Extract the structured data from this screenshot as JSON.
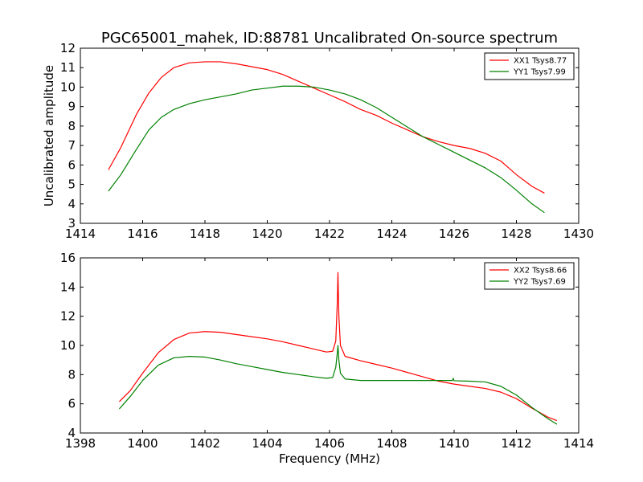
{
  "chart_data": [
    {
      "type": "line",
      "title": "PGC65001_mahek, ID:88781 Uncalibrated On-source spectrum",
      "xlabel": "",
      "ylabel": "Uncalibrated amplitude",
      "xlim": [
        1414,
        1430
      ],
      "ylim": [
        3,
        12
      ],
      "xticks": [
        1414,
        1416,
        1418,
        1420,
        1422,
        1424,
        1426,
        1428,
        1430
      ],
      "yticks": [
        3,
        4,
        5,
        6,
        7,
        8,
        9,
        10,
        11,
        12
      ],
      "grid": false,
      "legend": "top-right",
      "series": [
        {
          "name": "XX1 Tsys8.77",
          "color": "#ff0000",
          "points": [
            [
              1414.9,
              5.75
            ],
            [
              1415.3,
              6.9
            ],
            [
              1415.8,
              8.6
            ],
            [
              1416.2,
              9.7
            ],
            [
              1416.6,
              10.5
            ],
            [
              1417.0,
              11.0
            ],
            [
              1417.5,
              11.25
            ],
            [
              1418.0,
              11.3
            ],
            [
              1418.5,
              11.3
            ],
            [
              1419.0,
              11.2
            ],
            [
              1419.5,
              11.05
            ],
            [
              1420.0,
              10.9
            ],
            [
              1420.5,
              10.65
            ],
            [
              1421.0,
              10.3
            ],
            [
              1421.5,
              9.95
            ],
            [
              1422.0,
              9.6
            ],
            [
              1422.5,
              9.25
            ],
            [
              1423.0,
              8.85
            ],
            [
              1423.5,
              8.55
            ],
            [
              1424.0,
              8.15
            ],
            [
              1424.5,
              7.8
            ],
            [
              1425.0,
              7.45
            ],
            [
              1425.5,
              7.2
            ],
            [
              1426.0,
              7.0
            ],
            [
              1426.5,
              6.85
            ],
            [
              1427.0,
              6.6
            ],
            [
              1427.5,
              6.2
            ],
            [
              1428.0,
              5.5
            ],
            [
              1428.5,
              4.9
            ],
            [
              1428.9,
              4.55
            ]
          ]
        },
        {
          "name": "YY1 Tsys7.99",
          "color": "#008000",
          "points": [
            [
              1414.9,
              4.65
            ],
            [
              1415.3,
              5.5
            ],
            [
              1415.8,
              6.8
            ],
            [
              1416.2,
              7.8
            ],
            [
              1416.6,
              8.45
            ],
            [
              1417.0,
              8.85
            ],
            [
              1417.5,
              9.15
            ],
            [
              1418.0,
              9.35
            ],
            [
              1418.5,
              9.5
            ],
            [
              1419.0,
              9.65
            ],
            [
              1419.5,
              9.85
            ],
            [
              1420.0,
              9.95
            ],
            [
              1420.5,
              10.05
            ],
            [
              1421.0,
              10.05
            ],
            [
              1421.5,
              10.0
            ],
            [
              1422.0,
              9.85
            ],
            [
              1422.5,
              9.65
            ],
            [
              1423.0,
              9.35
            ],
            [
              1423.5,
              8.95
            ],
            [
              1424.0,
              8.45
            ],
            [
              1424.5,
              7.95
            ],
            [
              1425.0,
              7.45
            ],
            [
              1425.5,
              7.05
            ],
            [
              1426.0,
              6.65
            ],
            [
              1426.5,
              6.25
            ],
            [
              1427.0,
              5.85
            ],
            [
              1427.5,
              5.35
            ],
            [
              1428.0,
              4.7
            ],
            [
              1428.5,
              4.0
            ],
            [
              1428.9,
              3.55
            ]
          ]
        }
      ]
    },
    {
      "type": "line",
      "title": "",
      "xlabel": "Frequency (MHz)",
      "ylabel": "",
      "xlim": [
        1398,
        1414
      ],
      "ylim": [
        4,
        16
      ],
      "xticks": [
        1398,
        1400,
        1402,
        1404,
        1406,
        1408,
        1410,
        1412,
        1414
      ],
      "yticks": [
        4,
        6,
        8,
        10,
        12,
        14,
        16
      ],
      "grid": false,
      "legend": "top-right",
      "series": [
        {
          "name": "XX2 Tsys8.66",
          "color": "#ff0000",
          "points": [
            [
              1399.25,
              6.15
            ],
            [
              1399.6,
              6.9
            ],
            [
              1400.0,
              8.1
            ],
            [
              1400.5,
              9.5
            ],
            [
              1401.0,
              10.4
            ],
            [
              1401.5,
              10.85
            ],
            [
              1402.0,
              10.95
            ],
            [
              1402.5,
              10.9
            ],
            [
              1403.0,
              10.75
            ],
            [
              1403.5,
              10.6
            ],
            [
              1404.0,
              10.45
            ],
            [
              1404.5,
              10.25
            ],
            [
              1405.0,
              10.0
            ],
            [
              1405.5,
              9.75
            ],
            [
              1405.9,
              9.55
            ],
            [
              1406.1,
              9.6
            ],
            [
              1406.2,
              10.3
            ],
            [
              1406.25,
              13.0
            ],
            [
              1406.27,
              15.0
            ],
            [
              1406.3,
              12.0
            ],
            [
              1406.35,
              10.0
            ],
            [
              1406.5,
              9.25
            ],
            [
              1407.0,
              8.95
            ],
            [
              1407.5,
              8.7
            ],
            [
              1408.0,
              8.45
            ],
            [
              1408.5,
              8.15
            ],
            [
              1409.0,
              7.85
            ],
            [
              1409.5,
              7.55
            ],
            [
              1410.0,
              7.35
            ],
            [
              1410.5,
              7.2
            ],
            [
              1411.0,
              7.05
            ],
            [
              1411.5,
              6.8
            ],
            [
              1412.0,
              6.35
            ],
            [
              1412.5,
              5.7
            ],
            [
              1413.0,
              5.1
            ],
            [
              1413.3,
              4.85
            ]
          ]
        },
        {
          "name": "YY2 Tsys7.69",
          "color": "#008000",
          "points": [
            [
              1399.25,
              5.65
            ],
            [
              1399.6,
              6.5
            ],
            [
              1400.0,
              7.6
            ],
            [
              1400.5,
              8.65
            ],
            [
              1401.0,
              9.15
            ],
            [
              1401.5,
              9.25
            ],
            [
              1402.0,
              9.2
            ],
            [
              1402.5,
              9.0
            ],
            [
              1403.0,
              8.75
            ],
            [
              1403.5,
              8.55
            ],
            [
              1404.0,
              8.35
            ],
            [
              1404.5,
              8.15
            ],
            [
              1405.0,
              8.0
            ],
            [
              1405.5,
              7.85
            ],
            [
              1405.9,
              7.75
            ],
            [
              1406.1,
              7.8
            ],
            [
              1406.2,
              8.5
            ],
            [
              1406.25,
              9.5
            ],
            [
              1406.27,
              10.0
            ],
            [
              1406.3,
              9.0
            ],
            [
              1406.35,
              8.1
            ],
            [
              1406.5,
              7.7
            ],
            [
              1407.0,
              7.6
            ],
            [
              1407.5,
              7.6
            ],
            [
              1408.0,
              7.6
            ],
            [
              1408.5,
              7.6
            ],
            [
              1409.0,
              7.6
            ],
            [
              1409.5,
              7.6
            ],
            [
              1409.95,
              7.6
            ],
            [
              1409.97,
              7.75
            ],
            [
              1410.0,
              7.58
            ],
            [
              1410.5,
              7.55
            ],
            [
              1411.0,
              7.5
            ],
            [
              1411.5,
              7.2
            ],
            [
              1412.0,
              6.6
            ],
            [
              1412.5,
              5.75
            ],
            [
              1413.0,
              5.0
            ],
            [
              1413.3,
              4.6
            ]
          ]
        }
      ]
    }
  ]
}
